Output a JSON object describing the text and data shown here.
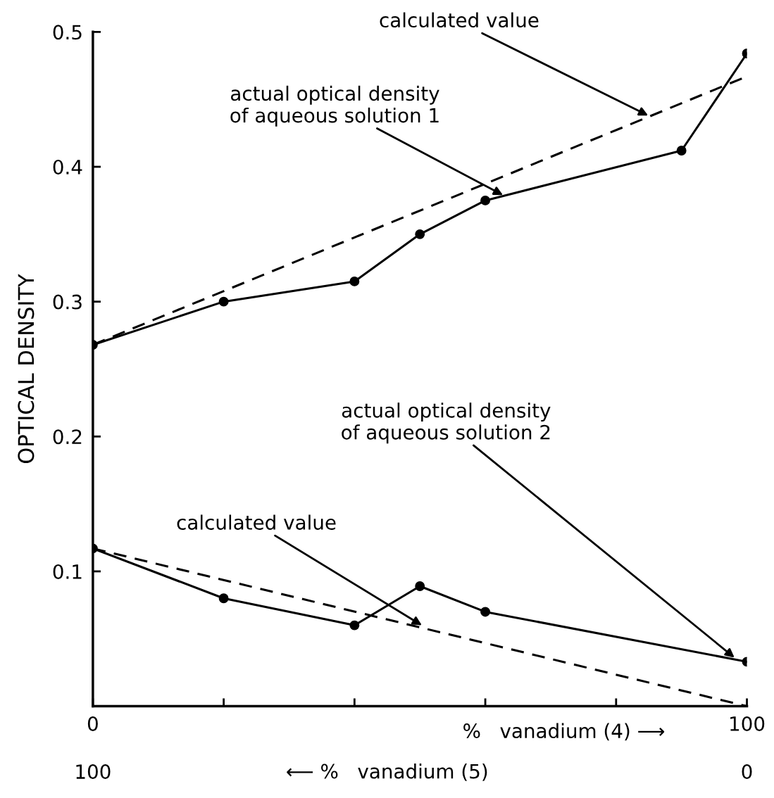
{
  "chart_data": {
    "type": "line",
    "ylabel": "OPTICAL DENSITY",
    "xlabel": "%   vanadium (4) ⟶",
    "x2label": "⟵ %   vanadium (5)",
    "xlim": [
      0,
      100
    ],
    "xticks": [
      0,
      {
        "value": 20,
        "label": null
      },
      {
        "value": 40,
        "label": null
      },
      {
        "value": 60,
        "label": null
      },
      {
        "value": 80,
        "label": null
      },
      100
    ],
    "x2lim": [
      100,
      0
    ],
    "x2ticks": [
      100,
      0
    ],
    "ylim": [
      0,
      0.5
    ],
    "yticks": [
      0.1,
      0.2,
      0.3,
      0.4,
      0.5
    ],
    "grid": false,
    "series": [
      {
        "color": "#000000",
        "x": [
          0,
          20,
          40,
          50,
          60,
          90,
          100
        ],
        "values": [
          0.268,
          0.3,
          0.315,
          0.35,
          0.375,
          0.412,
          0.484
        ],
        "marker": "circle",
        "line_style": "solid"
      },
      {
        "color": "#000000",
        "x": [
          0,
          100
        ],
        "values": [
          0.268,
          0.467
        ],
        "marker": "none",
        "line_style": "dashed"
      },
      {
        "color": "#000000",
        "x": [
          0,
          20,
          40,
          50,
          60,
          100
        ],
        "values": [
          0.117,
          0.08,
          0.06,
          0.089,
          0.07,
          0.033
        ],
        "marker": "circle",
        "line_style": "solid"
      },
      {
        "color": "#000000",
        "x": [
          0,
          100
        ],
        "values": [
          0.117,
          0.0
        ],
        "marker": "none",
        "line_style": "dashed"
      }
    ],
    "annotations": [
      {
        "text": "calculated value",
        "x": 84.9,
        "y": 0.438
      },
      {
        "text": "actual optical density\nof aqueous solution 1",
        "x": 62.7,
        "y": 0.379
      },
      {
        "text": "actual optical density\nof aqueous solution 2",
        "x": 98.1,
        "y": 0.036
      },
      {
        "text": "calculated value",
        "x": 50.3,
        "y": 0.06
      }
    ]
  }
}
